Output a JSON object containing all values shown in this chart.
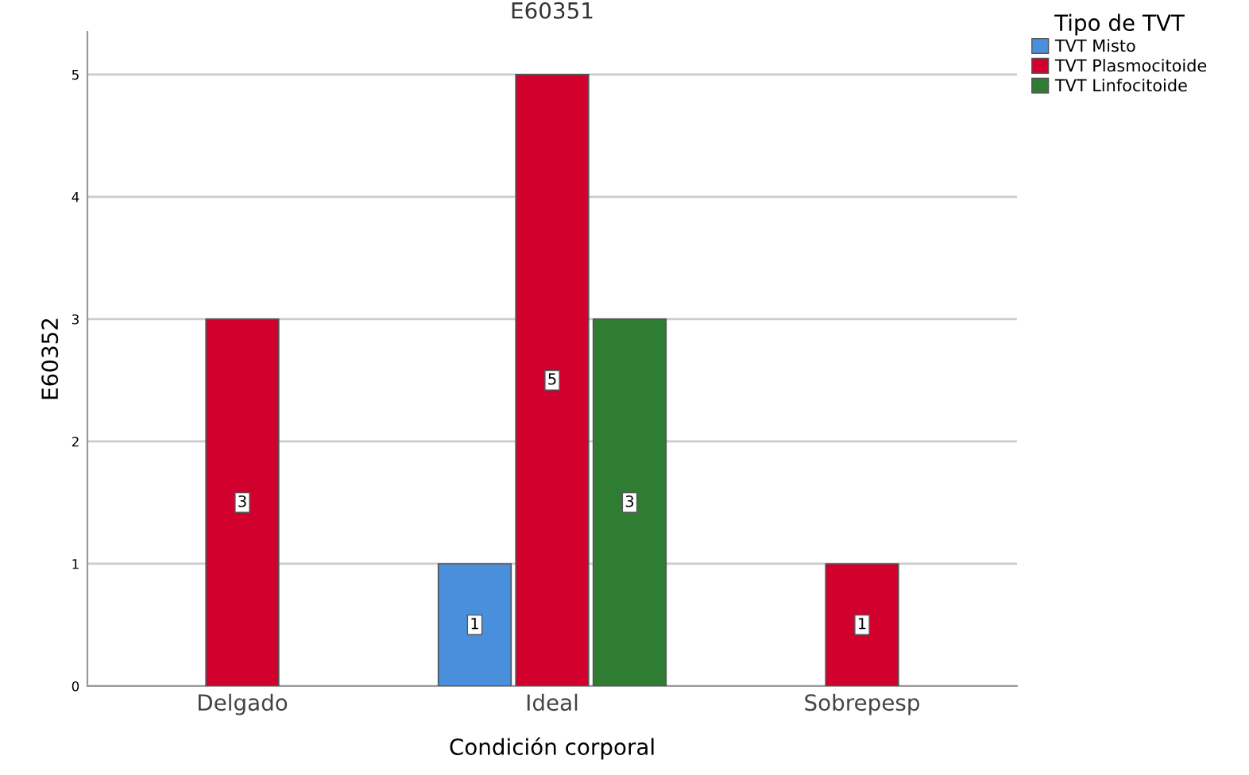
{
  "chart_data": {
    "type": "bar",
    "title": "E60351",
    "xlabel": "Condición corporal",
    "ylabel": "E60352",
    "legend_title": "Tipo de TVT",
    "categories": [
      "Delgado",
      "Ideal",
      "Sobrepesp"
    ],
    "series": [
      {
        "name": "TVT Misto",
        "color": "#4a8fdc",
        "values": [
          null,
          1,
          null
        ]
      },
      {
        "name": "TVT Plasmocitoide",
        "color": "#d2002d",
        "values": [
          3,
          5,
          1
        ]
      },
      {
        "name": "TVT Linfocitoide",
        "color": "#2e7d32",
        "values": [
          null,
          3,
          null
        ]
      }
    ],
    "ylim": [
      0,
      5.35
    ],
    "yticks": [
      0,
      1,
      2,
      3,
      4,
      5
    ],
    "grid": "y",
    "legend": "top right",
    "data_labels": true
  }
}
